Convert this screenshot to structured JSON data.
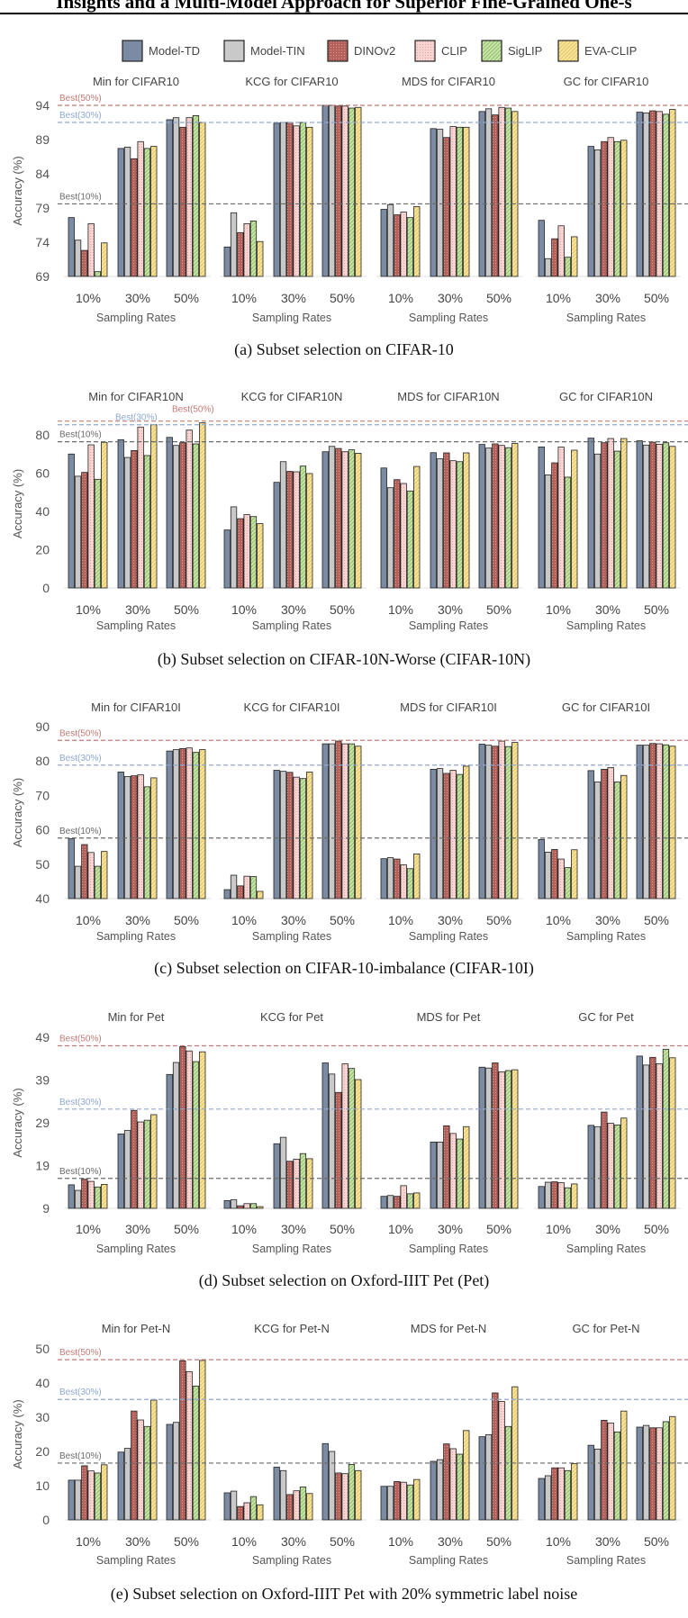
{
  "header": {
    "title": "Insights and a Multi-Model Approach for Superior Fine-Grained One-s"
  },
  "legend": [
    {
      "name": "Model-TD",
      "color": "#7b8ba3",
      "pattern": "solid"
    },
    {
      "name": "Model-TIN",
      "color": "#c9c9c9",
      "pattern": "solid"
    },
    {
      "name": "DINOv2",
      "color": "#b4615b",
      "pattern": "dots"
    },
    {
      "name": "CLIP",
      "color": "#f7d4d1",
      "pattern": "dots"
    },
    {
      "name": "SigLIP",
      "color": "#c8e4a8",
      "pattern": "hatch"
    },
    {
      "name": "EVA-CLIP",
      "color": "#f8e49e",
      "pattern": "hatch"
    }
  ],
  "chart_data": [
    {
      "type": "bar",
      "caption": "(a) Subset selection on CIFAR-10",
      "ylabel": "Accuracy (%)",
      "xlabel": "Sampling Rates",
      "ylim": [
        69,
        94
      ],
      "yticks": [
        69,
        74,
        79,
        84,
        89,
        94
      ],
      "categories": [
        "10%",
        "30%",
        "50%"
      ],
      "best_lines": [
        {
          "label": "Best(50%)",
          "value": 94.0,
          "color": "#c27a76"
        },
        {
          "label": "Best(30%)",
          "value": 91.5,
          "color": "#8ea7d2"
        },
        {
          "label": "Best(10%)",
          "value": 79.6,
          "color": "#6a6a6a"
        }
      ],
      "panels": [
        {
          "title": "Min for CIFAR10",
          "values": [
            [
              77.6,
              74.3,
              72.8,
              76.7,
              69.7,
              73.9
            ],
            [
              87.7,
              87.9,
              86.2,
              88.7,
              87.7,
              88.0
            ],
            [
              91.9,
              92.2,
              90.8,
              92.2,
              92.5,
              91.5
            ]
          ]
        },
        {
          "title": "KCG for CIFAR10",
          "values": [
            [
              73.3,
              78.3,
              75.4,
              76.7,
              77.1,
              74.1
            ],
            [
              91.4,
              91.5,
              91.5,
              91.0,
              91.5,
              90.8
            ],
            [
              94.0,
              94.0,
              93.9,
              93.9,
              93.6,
              93.7
            ]
          ]
        },
        {
          "title": "MDS for CIFAR10",
          "values": [
            [
              78.8,
              79.5,
              78.0,
              78.4,
              77.6,
              79.2
            ],
            [
              90.6,
              90.5,
              89.3,
              90.9,
              90.8,
              90.8
            ],
            [
              93.1,
              93.5,
              92.6,
              93.7,
              93.6,
              93.1
            ]
          ]
        },
        {
          "title": "GC for CIFAR10",
          "values": [
            [
              77.2,
              71.6,
              74.5,
              76.4,
              71.8,
              74.8
            ],
            [
              88.0,
              87.5,
              88.7,
              89.3,
              88.7,
              88.9
            ],
            [
              93.0,
              92.9,
              93.2,
              93.1,
              92.7,
              93.4
            ]
          ]
        }
      ]
    },
    {
      "type": "bar",
      "caption": "(b) Subset selection on CIFAR-10N-Worse (CIFAR-10N)",
      "ylabel": "Accuracy (%)",
      "xlabel": "Sampling Rates",
      "ylim": [
        0,
        88
      ],
      "yticks": [
        0,
        20,
        40,
        60,
        80
      ],
      "categories": [
        "10%",
        "30%",
        "50%"
      ],
      "best_lines": [
        {
          "label": "Best(50%)",
          "value": 87.2,
          "color": "#c27a76"
        },
        {
          "label": "Best(30%)",
          "value": 85.3,
          "color": "#8ea7d2"
        },
        {
          "label": "Best(10%)",
          "value": 76.4,
          "color": "#6a6a6a"
        }
      ],
      "panels": [
        {
          "title": "Min for CIFAR10N",
          "values": [
            [
              70.0,
              58.4,
              60.4,
              74.8,
              56.8,
              76.1
            ],
            [
              77.5,
              68.2,
              71.8,
              84.1,
              69.2,
              85.3
            ],
            [
              78.7,
              74.5,
              75.9,
              82.5,
              75.3,
              86.3
            ]
          ]
        },
        {
          "title": "KCG for CIFAR10N",
          "values": [
            [
              30.3,
              42.4,
              36.2,
              38.3,
              37.3,
              33.6
            ],
            [
              55.2,
              66.0,
              60.9,
              60.7,
              63.7,
              59.8
            ],
            [
              71.2,
              74.0,
              72.9,
              71.2,
              72.2,
              70.4
            ]
          ]
        },
        {
          "title": "MDS for CIFAR10N",
          "values": [
            [
              62.7,
              52.4,
              56.6,
              54.6,
              50.7,
              63.5
            ],
            [
              70.7,
              67.5,
              70.6,
              66.5,
              66.0,
              70.6
            ],
            [
              75.0,
              73.1,
              75.3,
              74.5,
              73.3,
              75.5
            ]
          ]
        },
        {
          "title": "GC for CIFAR10N",
          "values": [
            [
              73.7,
              59.1,
              65.4,
              73.6,
              57.9,
              72.0
            ],
            [
              78.3,
              70.0,
              75.9,
              78.1,
              71.5,
              78.1
            ],
            [
              76.9,
              74.7,
              76.2,
              75.1,
              75.9,
              74.0
            ]
          ]
        }
      ]
    },
    {
      "type": "bar",
      "caption": "(c) Subset selection on CIFAR-10-imbalance (CIFAR-10I)",
      "ylabel": "Accuracy (%)",
      "xlabel": "Sampling Rates",
      "ylim": [
        40,
        90
      ],
      "yticks": [
        40,
        50,
        60,
        70,
        80,
        90
      ],
      "categories": [
        "10%",
        "30%",
        "50%"
      ],
      "best_lines": [
        {
          "label": "Best(50%)",
          "value": 86.0,
          "color": "#c27a76"
        },
        {
          "label": "Best(30%)",
          "value": 78.8,
          "color": "#8ea7d2"
        },
        {
          "label": "Best(10%)",
          "value": 57.6,
          "color": "#6a6a6a"
        }
      ],
      "panels": [
        {
          "title": "Min for CIFAR10I",
          "values": [
            [
              57.4,
              49.4,
              55.7,
              53.4,
              49.4,
              53.7
            ],
            [
              76.8,
              75.5,
              75.7,
              76.0,
              72.5,
              75.1
            ],
            [
              82.9,
              83.3,
              83.6,
              83.8,
              82.5,
              83.3
            ]
          ]
        },
        {
          "title": "KCG for CIFAR10I",
          "values": [
            [
              42.6,
              46.8,
              43.7,
              46.5,
              46.4,
              42.1
            ],
            [
              77.3,
              77.0,
              76.7,
              75.3,
              74.9,
              76.8
            ],
            [
              85.0,
              85.0,
              85.8,
              85.0,
              85.0,
              84.3
            ]
          ]
        },
        {
          "title": "MDS for CIFAR10I",
          "values": [
            [
              51.6,
              51.9,
              51.5,
              49.8,
              48.7,
              53.0
            ],
            [
              77.6,
              77.8,
              76.4,
              77.3,
              76.1,
              78.5
            ],
            [
              84.9,
              84.6,
              84.3,
              85.8,
              84.2,
              85.4
            ]
          ]
        },
        {
          "title": "GC for CIFAR10I",
          "values": [
            [
              57.2,
              53.5,
              54.3,
              51.5,
              49.0,
              54.2
            ],
            [
              77.2,
              73.9,
              77.6,
              78.1,
              73.9,
              75.8
            ],
            [
              84.6,
              84.6,
              85.1,
              85.0,
              84.7,
              84.3
            ]
          ]
        }
      ]
    },
    {
      "type": "bar",
      "caption": "(d) Subset selection on Oxford-IIIT Pet (Pet)",
      "ylabel": "Accuracy (%)",
      "xlabel": "Sampling Rates",
      "ylim": [
        9,
        49
      ],
      "yticks": [
        9,
        19,
        29,
        39,
        49
      ],
      "categories": [
        "10%",
        "30%",
        "50%"
      ],
      "best_lines": [
        {
          "label": "Best(50%)",
          "value": 47.0,
          "color": "#c27a76"
        },
        {
          "label": "Best(30%)",
          "value": 32.2,
          "color": "#8ea7d2"
        },
        {
          "label": "Best(10%)",
          "value": 16.0,
          "color": "#6a6a6a"
        }
      ],
      "panels": [
        {
          "title": "Min for Pet",
          "values": [
            [
              14.5,
              13.2,
              15.8,
              15.3,
              14.0,
              14.6
            ],
            [
              26.4,
              27.2,
              31.9,
              29.2,
              29.6,
              30.9
            ],
            [
              40.3,
              43.1,
              46.8,
              45.8,
              43.3,
              45.6
            ]
          ]
        },
        {
          "title": "KCG for Pet",
          "values": [
            [
              10.8,
              11.0,
              9.6,
              10.1,
              10.1,
              9.4
            ],
            [
              24.1,
              25.6,
              20.0,
              20.5,
              21.8,
              20.6
            ],
            [
              43.0,
              40.4,
              36.1,
              42.8,
              41.7,
              39.1
            ]
          ]
        },
        {
          "title": "MDS for Pet",
          "values": [
            [
              11.8,
              12.0,
              11.8,
              14.3,
              12.4,
              12.6
            ],
            [
              24.5,
              24.5,
              28.3,
              26.5,
              25.2,
              28.1
            ],
            [
              42.0,
              41.8,
              43.0,
              40.9,
              41.2,
              41.4
            ]
          ]
        },
        {
          "title": "GC for Pet",
          "values": [
            [
              14.1,
              15.1,
              15.2,
              15.0,
              13.8,
              14.7
            ],
            [
              28.4,
              28.1,
              31.5,
              28.9,
              28.5,
              30.1
            ],
            [
              44.6,
              42.5,
              44.3,
              42.8,
              46.2,
              44.2
            ]
          ]
        }
      ]
    },
    {
      "type": "bar",
      "caption": "(e) Subset selection on Oxford-IIIT Pet with 20% symmetric label noise",
      "ylabel": "Accuracy (%)",
      "xlabel": "Sampling Rates",
      "ylim": [
        0,
        50
      ],
      "yticks": [
        0,
        10,
        20,
        30,
        40,
        50
      ],
      "categories": [
        "10%",
        "30%",
        "50%"
      ],
      "best_lines": [
        {
          "label": "Best(50%)",
          "value": 46.8,
          "color": "#c27a76"
        },
        {
          "label": "Best(30%)",
          "value": 35.2,
          "color": "#8ea7d2"
        },
        {
          "label": "Best(10%)",
          "value": 16.6,
          "color": "#6a6a6a"
        }
      ],
      "panels": [
        {
          "title": "Min for Pet-N",
          "values": [
            [
              11.6,
              11.6,
              15.8,
              14.3,
              13.7,
              16.1
            ],
            [
              19.8,
              20.9,
              31.8,
              29.2,
              27.3,
              35.0
            ],
            [
              27.9,
              28.5,
              46.5,
              43.3,
              39.1,
              46.6
            ]
          ]
        },
        {
          "title": "KCG for Pet-N",
          "values": [
            [
              7.9,
              8.4,
              3.9,
              5.0,
              6.8,
              4.4
            ],
            [
              15.4,
              14.4,
              7.4,
              8.5,
              9.6,
              7.7
            ],
            [
              22.3,
              20.0,
              13.7,
              13.5,
              16.2,
              14.4
            ]
          ]
        },
        {
          "title": "MDS for Pet-N",
          "values": [
            [
              9.8,
              9.8,
              11.2,
              11.0,
              10.2,
              11.8
            ],
            [
              17.1,
              17.6,
              22.2,
              20.8,
              19.2,
              26.1
            ],
            [
              24.3,
              24.9,
              37.1,
              34.6,
              27.3,
              38.9
            ]
          ]
        },
        {
          "title": "GC for Pet-N",
          "values": [
            [
              12.1,
              12.9,
              15.2,
              15.2,
              14.4,
              16.4
            ],
            [
              21.8,
              20.7,
              29.1,
              28.3,
              25.7,
              31.8
            ],
            [
              27.1,
              27.6,
              26.9,
              26.9,
              28.7,
              30.2
            ]
          ]
        }
      ]
    }
  ]
}
